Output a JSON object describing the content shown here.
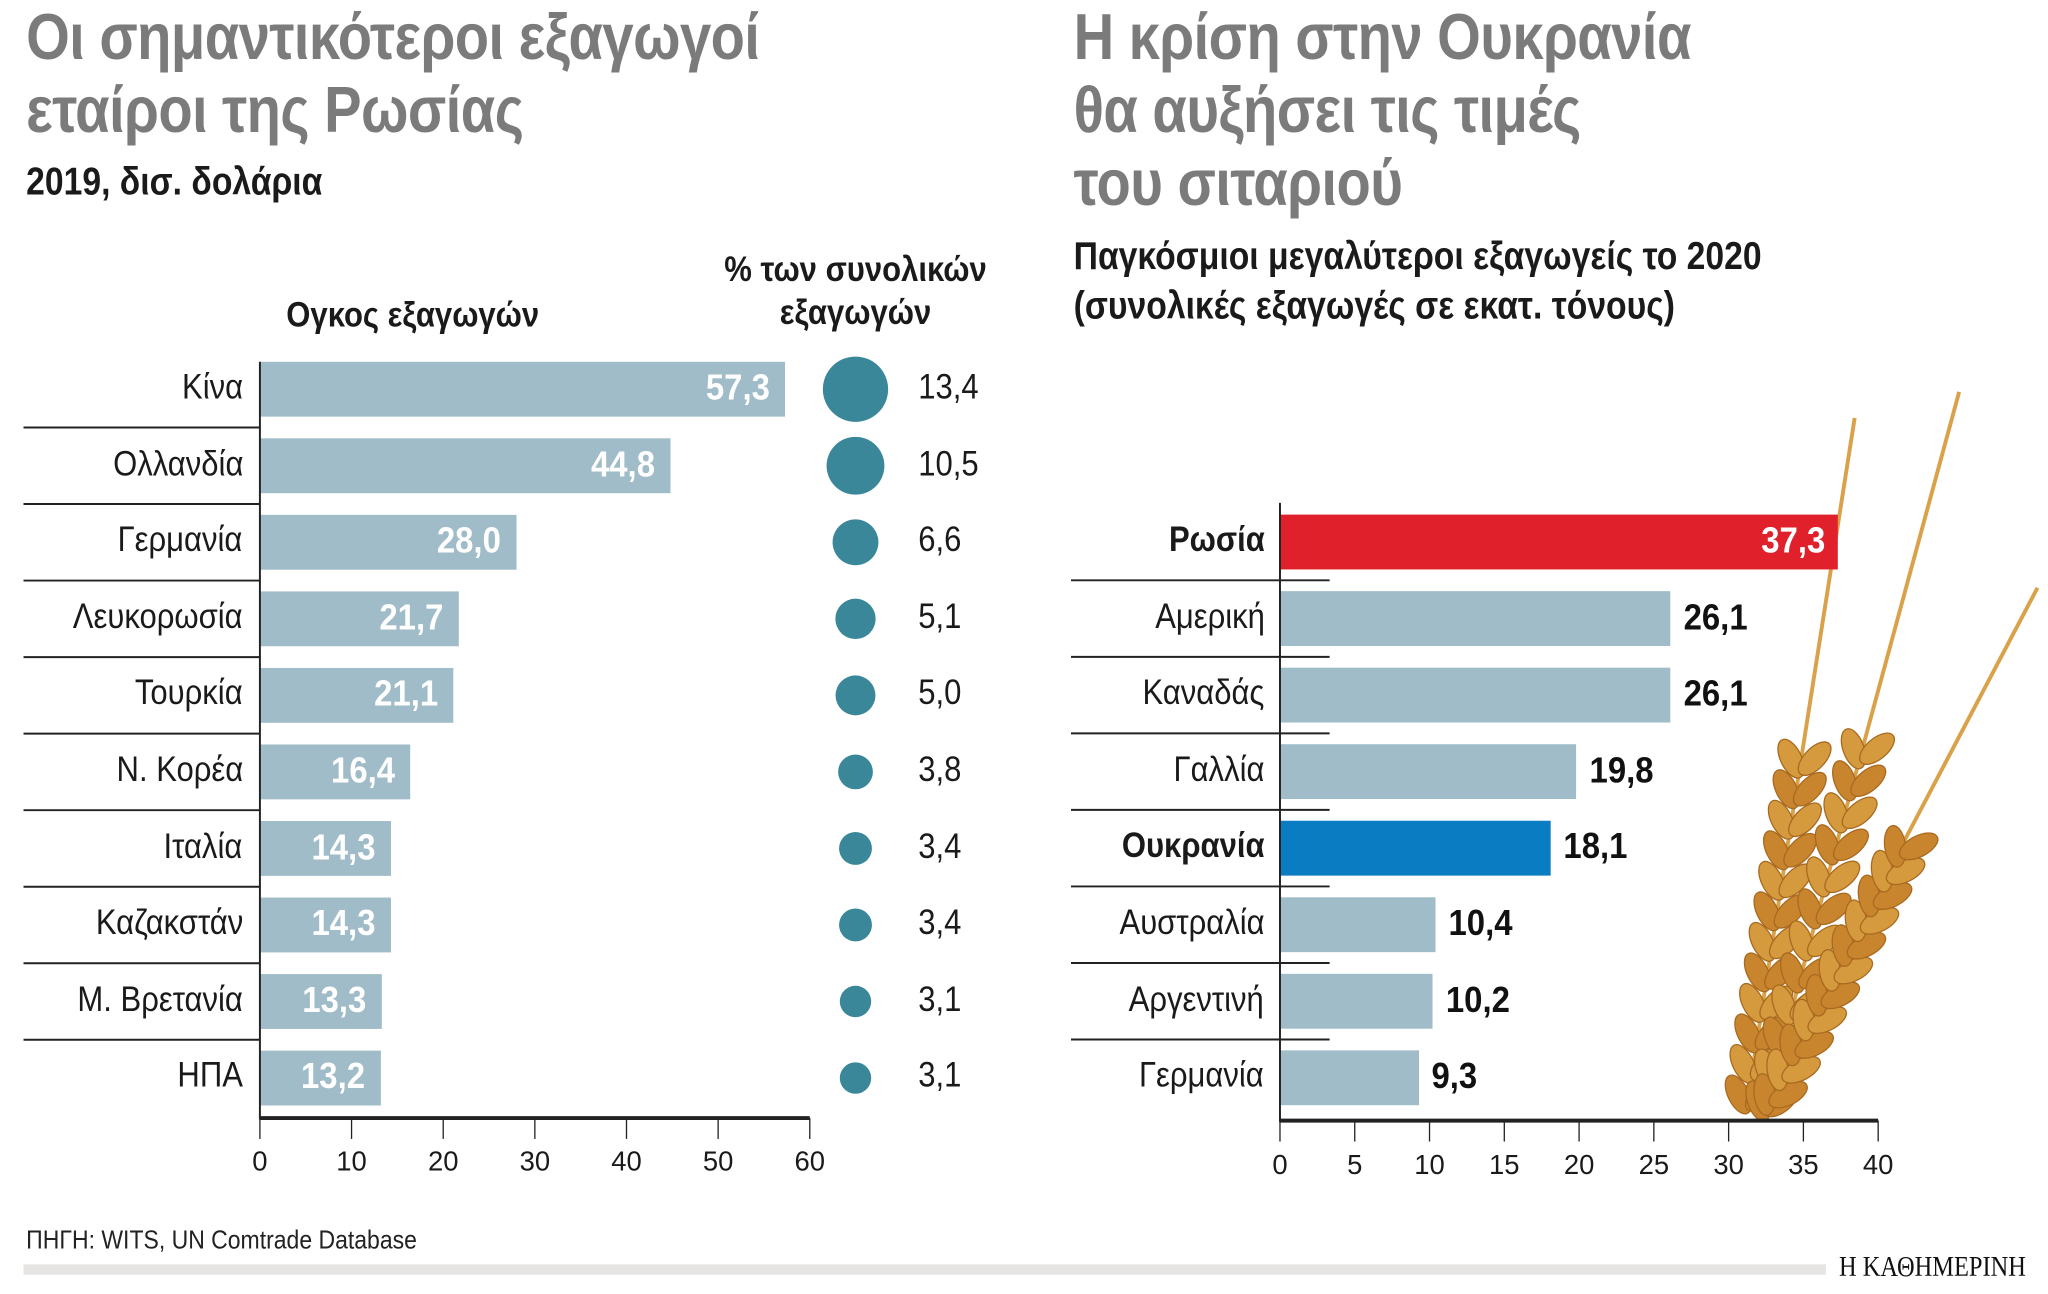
{
  "colors": {
    "bar": "#a0bcc8",
    "circle": "#3a8799",
    "russia": "#e0202a",
    "ukraine": "#0a7cc2",
    "title": "#7b7b7b"
  },
  "chart_data": [
    {
      "type": "bar",
      "title": "Οι σημαντικότεροι εξαγωγοί εταίροι της Ρωσίας",
      "title_lines": [
        "Οι σημαντικότεροι εξαγωγοί",
        "εταίροι της Ρωσίας"
      ],
      "subtitle": "2019, δισ. δολάρια",
      "xlabel": "Ογκος εξαγωγών",
      "secondary_label_lines": [
        "% των συνολικών",
        "εξαγωγών"
      ],
      "categories": [
        "Κίνα",
        "Ολλανδία",
        "Γερμανία",
        "Λευκορωσία",
        "Τουρκία",
        "Ν. Κορέα",
        "Ιταλία",
        "Καζακστάν",
        "Μ. Βρετανία",
        "ΗΠΑ"
      ],
      "values": [
        57.3,
        44.8,
        28.0,
        21.7,
        21.1,
        16.4,
        14.3,
        14.3,
        13.3,
        13.2
      ],
      "value_labels": [
        "57,3",
        "44,8",
        "28,0",
        "21,7",
        "21,1",
        "16,4",
        "14,3",
        "14,3",
        "13,3",
        "13,2"
      ],
      "share_percent": [
        13.4,
        10.5,
        6.6,
        5.1,
        5.0,
        3.8,
        3.4,
        3.4,
        3.1,
        3.1
      ],
      "share_labels": [
        "13,4",
        "10,5",
        "6,6",
        "5,1",
        "5,0",
        "3,8",
        "3,4",
        "3,4",
        "3,1",
        "3,1"
      ],
      "xlim": [
        0,
        60
      ],
      "ticks": [
        "0",
        "10",
        "20",
        "30",
        "40",
        "50",
        "60"
      ],
      "grid": false
    },
    {
      "type": "bar",
      "title": "Η κρίση στην Ουκρανία θα αυξήσει τις τιμές του σιταριού",
      "title_lines": [
        "Η κρίση στην Ουκρανία",
        "θα αυξήσει τις τιμές",
        "του σιταριού"
      ],
      "subtitle_lines": [
        "Παγκόσμιοι μεγαλύτεροι εξαγωγείς το 2020",
        "(συνολικές εξαγωγές σε εκατ. τόνους)"
      ],
      "categories": [
        "Ρωσία",
        "Αμερική",
        "Καναδάς",
        "Γαλλία",
        "Ουκρανία",
        "Αυστραλία",
        "Αργεντινή",
        "Γερμανία"
      ],
      "values": [
        37.3,
        26.1,
        26.1,
        19.8,
        18.1,
        10.4,
        10.2,
        9.3
      ],
      "value_labels": [
        "37,3",
        "26,1",
        "26,1",
        "19,8",
        "18,1",
        "10,4",
        "10,2",
        "9,3"
      ],
      "highlight": {
        "Ρωσία": "russia",
        "Ουκρανία": "ukraine"
      },
      "xlim": [
        0,
        40
      ],
      "ticks": [
        "0",
        "5",
        "10",
        "15",
        "20",
        "25",
        "30",
        "35",
        "40"
      ],
      "grid": false
    }
  ],
  "footer": {
    "source": "ΠΗΓΗ: WITS, UN Comtrade Database",
    "logo": "Η ΚΑΘΗΜΕΡΙΝΗ"
  }
}
